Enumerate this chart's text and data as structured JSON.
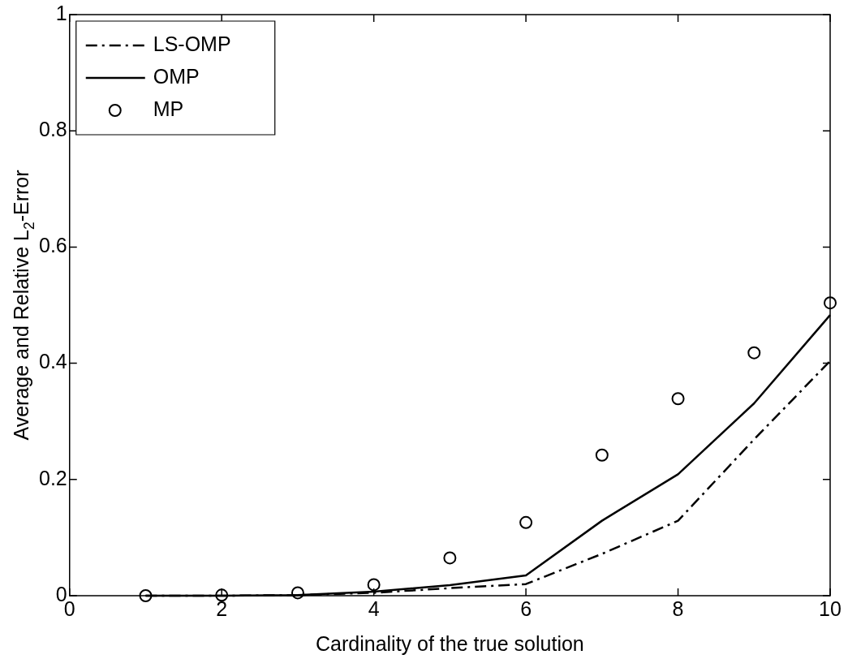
{
  "chart_data": {
    "type": "line",
    "xlabel": "Cardinality of the true solution",
    "ylabel": "Average and Relative L$_{2}$-Error",
    "x": [
      1,
      2,
      3,
      4,
      5,
      6,
      7,
      8,
      9,
      10
    ],
    "series": [
      {
        "name": "LS-OMP",
        "color": "#000000",
        "line_style": "dashdot",
        "marker": "none",
        "values": [
          0,
          0,
          0.001,
          0.005,
          0.013,
          0.02,
          0.072,
          0.129,
          0.269,
          0.404
        ]
      },
      {
        "name": "OMP",
        "color": "#000000",
        "line_style": "solid",
        "marker": "none",
        "values": [
          0,
          0,
          0.001,
          0.007,
          0.018,
          0.035,
          0.129,
          0.209,
          0.331,
          0.483
        ]
      },
      {
        "name": "MP",
        "type": "scatter",
        "color": "#000000",
        "marker": "circle",
        "values": [
          0,
          0.001,
          0.005,
          0.019,
          0.065,
          0.126,
          0.242,
          0.339,
          0.418,
          0.504
        ]
      }
    ],
    "xlim": [
      0,
      10
    ],
    "xticks": [
      0,
      2,
      4,
      6,
      8,
      10
    ],
    "ylim": [
      0,
      1
    ],
    "yticks": [
      0,
      0.2,
      0.4,
      0.6,
      0.8,
      1
    ],
    "grid": false,
    "legend": "top left"
  }
}
